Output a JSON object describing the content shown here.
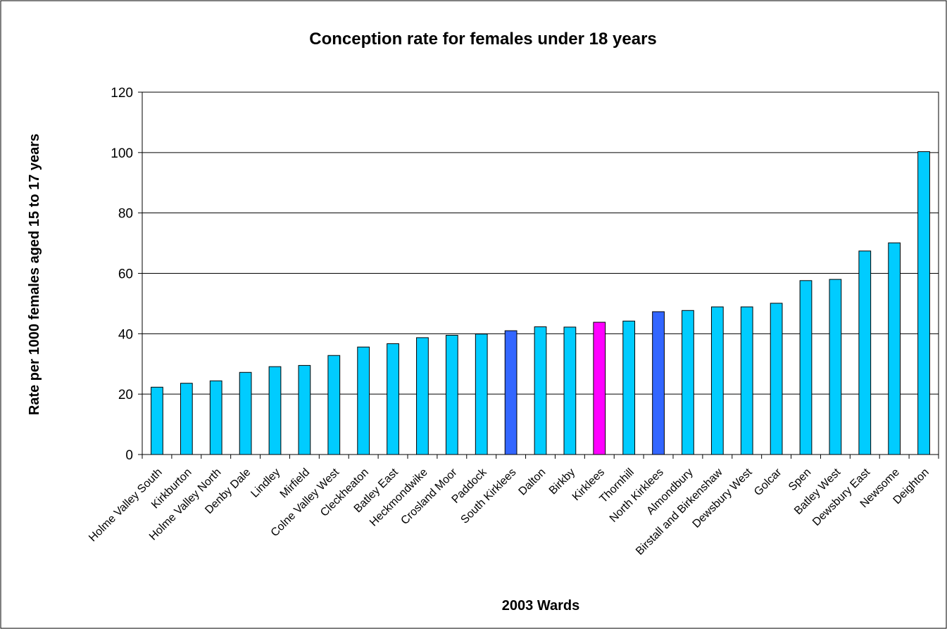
{
  "chart_data": {
    "type": "bar",
    "title": "Conception rate for females under 18 years",
    "xlabel": "2003 Wards",
    "ylabel": "Rate per 1000 females aged 15 to 17 years",
    "ylim": [
      0,
      120
    ],
    "yticks": [
      0,
      20,
      40,
      60,
      80,
      100,
      120
    ],
    "grid": true,
    "legend": "none",
    "categories": [
      "Holme Valley South",
      "Kirkburton",
      "Holme Valley North",
      "Denby Dale",
      "Lindley",
      "Mirfield",
      "Colne Valley West",
      "Cleckheaton",
      "Batley East",
      "Heckmondwike",
      "Crosland Moor",
      "Paddock",
      "South Kirklees",
      "Dalton",
      "Birkby",
      "Kirklees",
      "Thornhill",
      "North Kirklees",
      "Almondbury",
      "Birstall and Birkenshaw",
      "Dewsbury West",
      "Golcar",
      "Spen",
      "Batley West",
      "Dewsbury East",
      "Newsome",
      "Deighton"
    ],
    "values": [
      22.3,
      23.6,
      24.4,
      27.2,
      29.1,
      29.5,
      32.8,
      35.6,
      36.7,
      38.7,
      39.5,
      39.9,
      41.0,
      42.3,
      42.2,
      43.8,
      44.2,
      47.3,
      47.7,
      48.9,
      48.9,
      50.1,
      57.6,
      58.0,
      67.4,
      70.1,
      100.3
    ],
    "bar_colors": [
      "#00ccff",
      "#00ccff",
      "#00ccff",
      "#00ccff",
      "#00ccff",
      "#00ccff",
      "#00ccff",
      "#00ccff",
      "#00ccff",
      "#00ccff",
      "#00ccff",
      "#00ccff",
      "#3366ff",
      "#00ccff",
      "#00ccff",
      "#ff00ff",
      "#00ccff",
      "#3366ff",
      "#00ccff",
      "#00ccff",
      "#00ccff",
      "#00ccff",
      "#00ccff",
      "#00ccff",
      "#00ccff",
      "#00ccff",
      "#00ccff"
    ]
  }
}
